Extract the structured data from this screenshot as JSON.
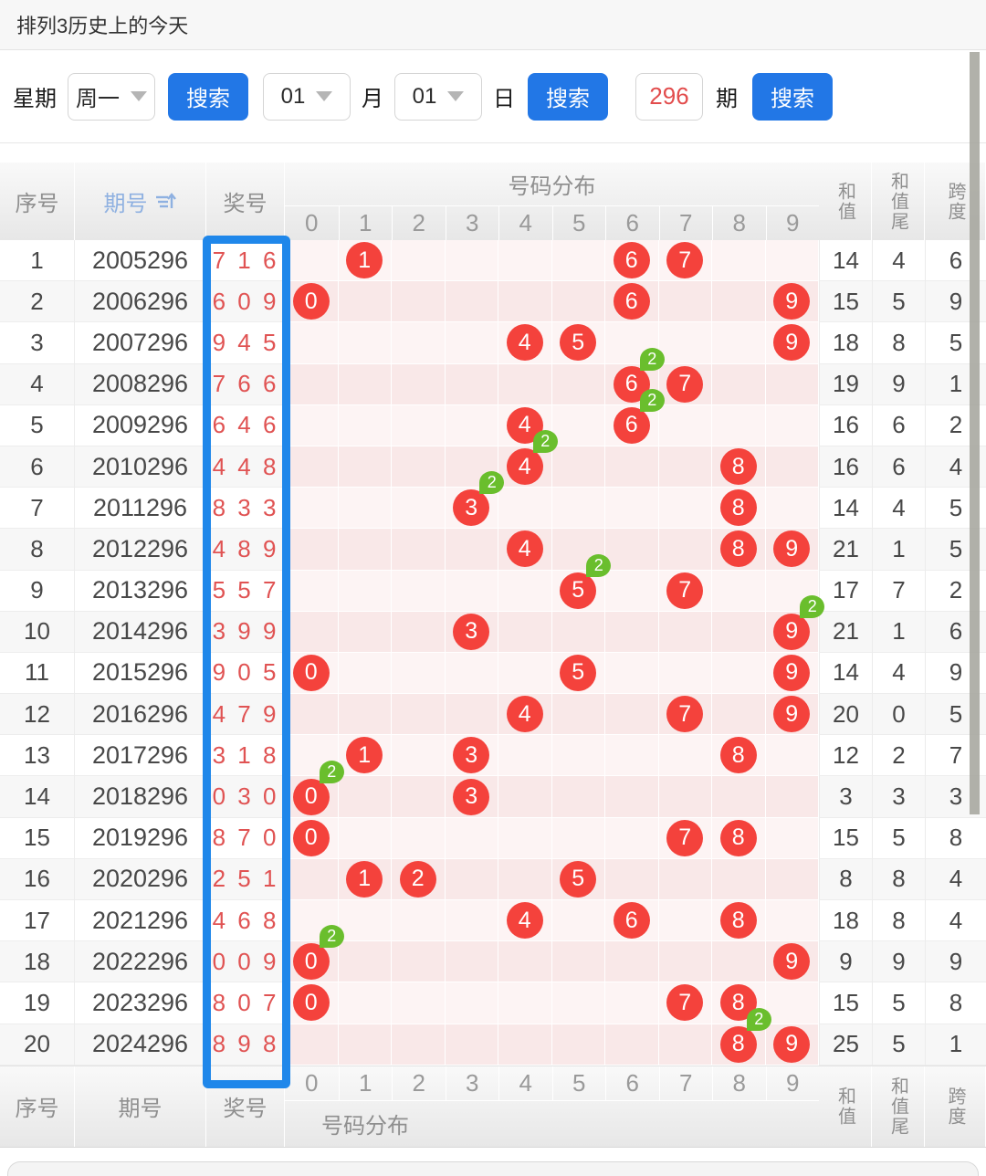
{
  "title": "排列3历史上的今天",
  "search": {
    "week_label": "星期",
    "week_value": "周一",
    "week_search_label": "搜索",
    "month_value": "01",
    "month_label": "月",
    "day_value": "01",
    "day_label": "日",
    "date_search_label": "搜索",
    "period_value": "296",
    "period_label": "期",
    "period_search_label": "搜索"
  },
  "table": {
    "headers": {
      "seq": "序号",
      "period": "期号",
      "prize": "奖号",
      "distribution": "号码分布",
      "digits": [
        "0",
        "1",
        "2",
        "3",
        "4",
        "5",
        "6",
        "7",
        "8",
        "9"
      ],
      "sum": "和值",
      "sum_tail": "和值尾",
      "span": "跨度"
    },
    "repeat_badge": "2",
    "rows": [
      {
        "seq": "1",
        "period": "2005296",
        "prize": "7 1 6",
        "balls": [
          1,
          6,
          7
        ],
        "double": null,
        "sum": "14",
        "tail": "4",
        "span": "6"
      },
      {
        "seq": "2",
        "period": "2006296",
        "prize": "6 0 9",
        "balls": [
          0,
          6,
          9
        ],
        "double": null,
        "sum": "15",
        "tail": "5",
        "span": "9"
      },
      {
        "seq": "3",
        "period": "2007296",
        "prize": "9 4 5",
        "balls": [
          4,
          5,
          9
        ],
        "double": null,
        "sum": "18",
        "tail": "8",
        "span": "5"
      },
      {
        "seq": "4",
        "period": "2008296",
        "prize": "7 6 6",
        "balls": [
          6,
          7
        ],
        "double": 6,
        "sum": "19",
        "tail": "9",
        "span": "1"
      },
      {
        "seq": "5",
        "period": "2009296",
        "prize": "6 4 6",
        "balls": [
          4,
          6
        ],
        "double": 6,
        "sum": "16",
        "tail": "6",
        "span": "2"
      },
      {
        "seq": "6",
        "period": "2010296",
        "prize": "4 4 8",
        "balls": [
          4,
          8
        ],
        "double": 4,
        "sum": "16",
        "tail": "6",
        "span": "4"
      },
      {
        "seq": "7",
        "period": "2011296",
        "prize": "8 3 3",
        "balls": [
          3,
          8
        ],
        "double": 3,
        "sum": "14",
        "tail": "4",
        "span": "5"
      },
      {
        "seq": "8",
        "period": "2012296",
        "prize": "4 8 9",
        "balls": [
          4,
          8,
          9
        ],
        "double": null,
        "sum": "21",
        "tail": "1",
        "span": "5"
      },
      {
        "seq": "9",
        "period": "2013296",
        "prize": "5 5 7",
        "balls": [
          5,
          7
        ],
        "double": 5,
        "sum": "17",
        "tail": "7",
        "span": "2"
      },
      {
        "seq": "10",
        "period": "2014296",
        "prize": "3 9 9",
        "balls": [
          3,
          9
        ],
        "double": 9,
        "sum": "21",
        "tail": "1",
        "span": "6"
      },
      {
        "seq": "11",
        "period": "2015296",
        "prize": "9 0 5",
        "balls": [
          0,
          5,
          9
        ],
        "double": null,
        "sum": "14",
        "tail": "4",
        "span": "9"
      },
      {
        "seq": "12",
        "period": "2016296",
        "prize": "4 7 9",
        "balls": [
          4,
          7,
          9
        ],
        "double": null,
        "sum": "20",
        "tail": "0",
        "span": "5"
      },
      {
        "seq": "13",
        "period": "2017296",
        "prize": "3 1 8",
        "balls": [
          1,
          3,
          8
        ],
        "double": null,
        "sum": "12",
        "tail": "2",
        "span": "7"
      },
      {
        "seq": "14",
        "period": "2018296",
        "prize": "0 3 0",
        "balls": [
          0,
          3
        ],
        "double": 0,
        "sum": "3",
        "tail": "3",
        "span": "3"
      },
      {
        "seq": "15",
        "period": "2019296",
        "prize": "8 7 0",
        "balls": [
          0,
          7,
          8
        ],
        "double": null,
        "sum": "15",
        "tail": "5",
        "span": "8"
      },
      {
        "seq": "16",
        "period": "2020296",
        "prize": "2 5 1",
        "balls": [
          1,
          2,
          5
        ],
        "double": null,
        "sum": "8",
        "tail": "8",
        "span": "4"
      },
      {
        "seq": "17",
        "period": "2021296",
        "prize": "4 6 8",
        "balls": [
          4,
          6,
          8
        ],
        "double": null,
        "sum": "18",
        "tail": "8",
        "span": "4"
      },
      {
        "seq": "18",
        "period": "2022296",
        "prize": "0 0 9",
        "balls": [
          0,
          9
        ],
        "double": 0,
        "sum": "9",
        "tail": "9",
        "span": "9"
      },
      {
        "seq": "19",
        "period": "2023296",
        "prize": "8 0 7",
        "balls": [
          0,
          7,
          8
        ],
        "double": null,
        "sum": "15",
        "tail": "5",
        "span": "8"
      },
      {
        "seq": "20",
        "period": "2024296",
        "prize": "8 9 8",
        "balls": [
          8,
          9
        ],
        "double": 8,
        "sum": "25",
        "tail": "5",
        "span": "1"
      }
    ]
  },
  "colors": {
    "accent_blue": "#2277e6",
    "highlight_box_blue": "#1f87ea",
    "ball_red": "#f4423c",
    "prize_text_red": "#e05353",
    "badge_green": "#6abe2d",
    "period_header_blue": "#8fb1e1"
  }
}
